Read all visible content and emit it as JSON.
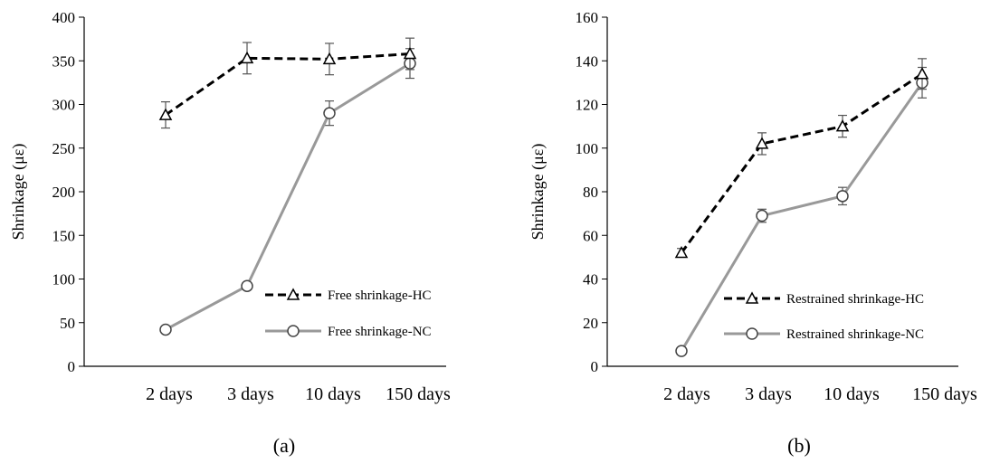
{
  "chart_data": [
    {
      "type": "line",
      "panel_label": "(a)",
      "categories": [
        "2 days",
        "3 days",
        "10 days",
        "150 days"
      ],
      "ylabel": "Shrinkage (με)",
      "ylim": [
        0,
        400
      ],
      "yticks": [
        0,
        50,
        100,
        150,
        200,
        250,
        300,
        350,
        400
      ],
      "grid": false,
      "legend_position": "lower-right",
      "series": [
        {
          "name": "Free shrinkage-HC",
          "values": [
            288,
            353,
            352,
            358
          ],
          "error": [
            15,
            18,
            18,
            18
          ],
          "marker": "triangle",
          "line": "dashed",
          "color": "#000000"
        },
        {
          "name": "Free shrinkage-NC",
          "values": [
            42,
            92,
            290,
            347
          ],
          "error": [
            2,
            3,
            14,
            17
          ],
          "marker": "circle",
          "line": "solid",
          "color": "#999999"
        }
      ]
    },
    {
      "type": "line",
      "panel_label": "(b)",
      "categories": [
        "2 days",
        "3 days",
        "10 days",
        "150 days"
      ],
      "ylabel": "Shrinkage (με)",
      "ylim": [
        0,
        160
      ],
      "yticks": [
        0,
        20,
        40,
        60,
        80,
        100,
        120,
        140,
        160
      ],
      "grid": false,
      "legend_position": "lower-right",
      "series": [
        {
          "name": "Restrained shrinkage-HC",
          "values": [
            52,
            102,
            110,
            134
          ],
          "error": [
            2,
            5,
            5,
            7
          ],
          "marker": "triangle",
          "line": "dashed",
          "color": "#000000"
        },
        {
          "name": "Restrained shrinkage-NC",
          "values": [
            7,
            69,
            78,
            130
          ],
          "error": [
            1,
            3,
            4,
            7
          ],
          "marker": "circle",
          "line": "solid",
          "color": "#999999"
        }
      ]
    }
  ]
}
